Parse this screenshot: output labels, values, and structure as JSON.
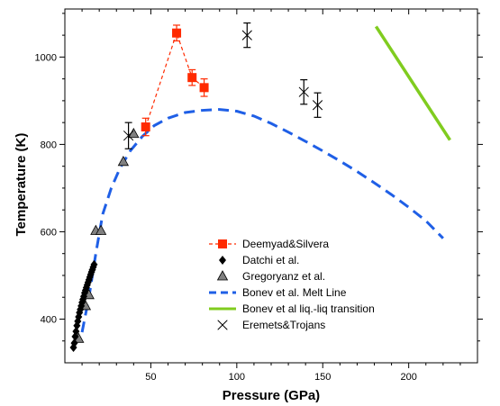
{
  "chart_data": {
    "type": "scatter",
    "title": "",
    "xlabel": "Pressure (GPa)",
    "ylabel": "Temperature (K)",
    "xlim": [
      0,
      240
    ],
    "ylim": [
      300,
      1110
    ],
    "xticks": [
      50,
      100,
      150,
      200
    ],
    "yticks": [
      400,
      600,
      800,
      1000
    ],
    "grid": false,
    "legend_position": "center-bottom",
    "series": [
      {
        "name": "Deemyad&Silvera",
        "kind": "points-with-dashed-line",
        "color": "#ff2a00",
        "marker": "square",
        "x": [
          47,
          65,
          74,
          81
        ],
        "y": [
          840,
          1055,
          953,
          930
        ],
        "yerr": [
          20,
          18,
          18,
          20
        ]
      },
      {
        "name": "Datchi et al.",
        "kind": "points",
        "color": "#000000",
        "marker": "diamond",
        "x": [
          5,
          5.5,
          6,
          6.5,
          7,
          7.5,
          8,
          8.5,
          9,
          9.5,
          10,
          10.5,
          11,
          11.5,
          12,
          12.5,
          13,
          13.5,
          14,
          14.5,
          15,
          15.5,
          16,
          16.5,
          17
        ],
        "y": [
          335,
          345,
          360,
          372,
          385,
          395,
          405,
          415,
          422,
          430,
          438,
          445,
          452,
          460,
          466,
          472,
          478,
          484,
          490,
          496,
          502,
          508,
          513,
          519,
          525
        ]
      },
      {
        "name": "Gregoryanz et al.",
        "kind": "points",
        "color": "#808080",
        "marker": "triangle",
        "x": [
          8,
          18,
          21,
          34,
          40,
          12,
          14
        ],
        "y": [
          355,
          602,
          602,
          760,
          824,
          430,
          455
        ]
      },
      {
        "name": "Bonev et al. Melt Line",
        "kind": "dashed-line",
        "color": "#1f5fe6",
        "x": [
          10,
          14,
          18,
          22,
          27,
          32,
          38,
          45,
          52,
          60,
          70,
          80,
          90,
          100,
          110,
          120,
          130,
          140,
          150,
          160,
          170,
          180,
          190,
          200,
          210,
          220
        ],
        "y": [
          370,
          450,
          550,
          640,
          700,
          745,
          785,
          818,
          843,
          860,
          873,
          878,
          880,
          876,
          865,
          848,
          828,
          807,
          785,
          762,
          738,
          712,
          685,
          656,
          625,
          585
        ]
      },
      {
        "name": "Bonev et al liq.-liq transition",
        "kind": "line",
        "color": "#80cc1f",
        "x": [
          181,
          224
        ],
        "y": [
          1070,
          810
        ]
      },
      {
        "name": "Eremets&Trojans",
        "kind": "points",
        "color": "#000000",
        "marker": "bowtie",
        "x": [
          37,
          106,
          139,
          147
        ],
        "y": [
          820,
          1050,
          920,
          890
        ],
        "yerr": [
          30,
          28,
          28,
          28
        ]
      }
    ]
  }
}
